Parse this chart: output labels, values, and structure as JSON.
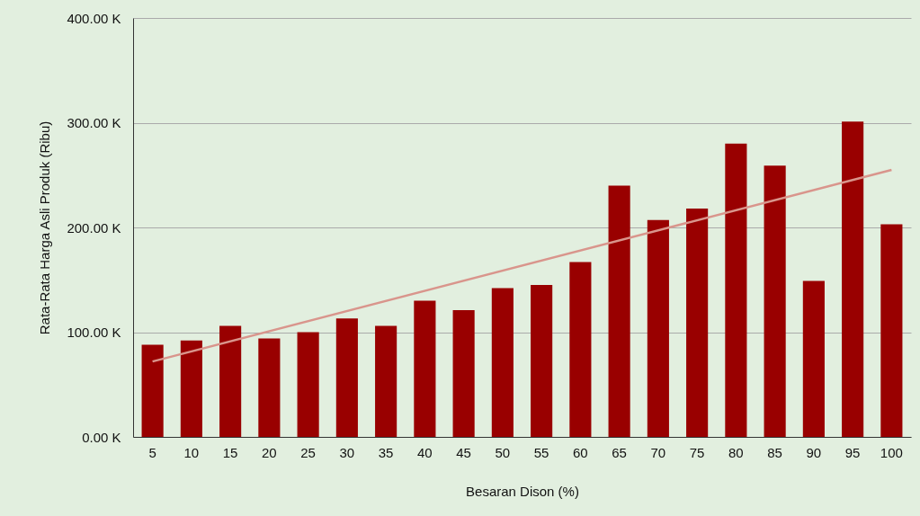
{
  "chart_data": {
    "type": "bar",
    "xlabel": "Besaran Dison (%)",
    "ylabel": "Rata-Rata Harga Asli Produk (Ribu)",
    "categories": [
      "5",
      "10",
      "15",
      "20",
      "25",
      "30",
      "35",
      "40",
      "45",
      "50",
      "55",
      "60",
      "65",
      "70",
      "75",
      "80",
      "85",
      "90",
      "95",
      "100"
    ],
    "series": [
      {
        "color": "#990000",
        "values": [
          88,
          92,
          106,
          94,
          100,
          113,
          106,
          130,
          121,
          142,
          145,
          167,
          240,
          207,
          218,
          280,
          259,
          149,
          301,
          203
        ]
      },
      {
        "type": "line",
        "color": "#d9958c",
        "x": [
          "5",
          "100"
        ],
        "values": [
          72,
          255
        ]
      }
    ],
    "ylim": [
      0,
      400
    ],
    "yticks": [
      {
        "value": 0,
        "label": "0.00 K"
      },
      {
        "value": 100,
        "label": "100.00 K"
      },
      {
        "value": 200,
        "label": "200.00 K"
      },
      {
        "value": 300,
        "label": "300.00 K"
      },
      {
        "value": 400,
        "label": "400.00 K"
      }
    ],
    "grid": "y"
  }
}
